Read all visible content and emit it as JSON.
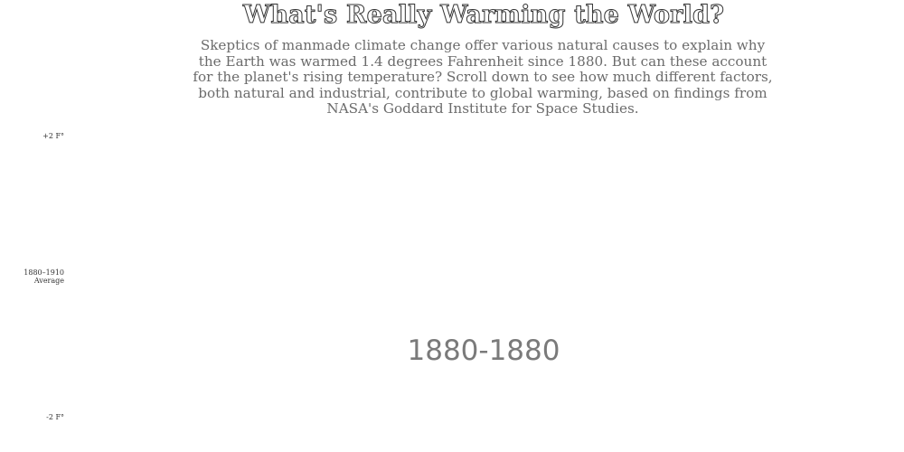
{
  "header": {
    "title": "What's Really Warming the World?",
    "subtitle": "Skeptics of manmade climate change offer various natural causes to explain why the Earth was warmed 1.4 degrees Fahrenheit since 1880. But can these account for the planet's rising temperature? Scroll down to see how much different factors, both natural and industrial, contribute to global warming, based on findings from NASA's Goddard Institute for Space Studies."
  },
  "chart_data": {
    "type": "line",
    "title": "",
    "xlabel": "",
    "ylabel": "",
    "y_ticks": [
      {
        "label": "+2 F°",
        "value": 2
      },
      {
        "label": "1880–1910",
        "sublabel": "Average",
        "value": 0
      },
      {
        "label": "-2 F°",
        "value": -2
      }
    ],
    "ylim": [
      -2,
      2
    ],
    "year_range_label": "1880-1880",
    "series": []
  }
}
